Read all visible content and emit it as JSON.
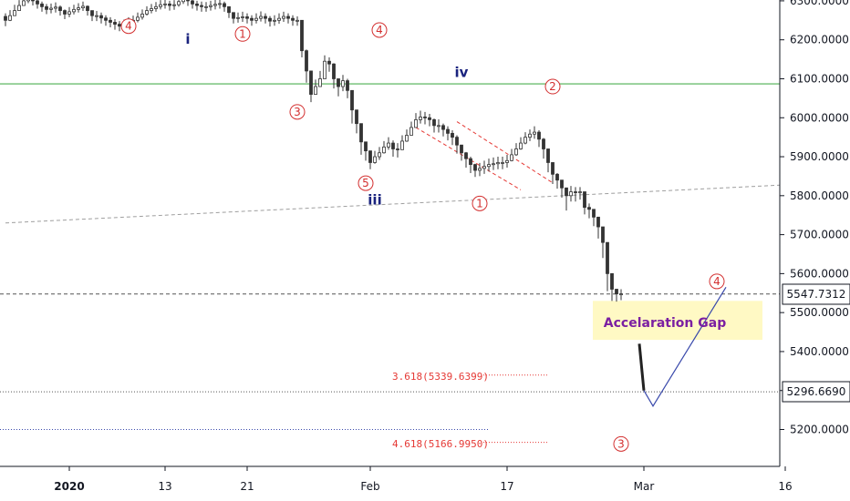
{
  "colors": {
    "up": "#26a69a",
    "down": "#222222",
    "candle": "#333333",
    "wave_red": "#d32f2f",
    "wave_blue": "#1a237e",
    "resistance": "#4caf50",
    "fib": "#e53935",
    "gap_fill": "#fff9c4",
    "gap_text": "#7b1fa2",
    "projection": "#3949ab"
  },
  "price_badges": {
    "current": "5547.7312",
    "low": "5296.6690"
  },
  "fib_labels": {
    "upper": "3.618(5339.6399)",
    "lower": "4.618(5166.9950)"
  },
  "gap_label": "Accelaration Gap",
  "wave_labels": [
    {
      "text": "4",
      "style": "circle",
      "price": 6235,
      "idx": 27
    },
    {
      "text": "i",
      "style": "blue",
      "price": 6190,
      "idx": 40
    },
    {
      "text": "1",
      "style": "circle",
      "price": 6215,
      "idx": 52
    },
    {
      "text": "2",
      "style": "circle",
      "price": 6345,
      "idx": 67
    },
    {
      "text": "4",
      "style": "circle",
      "price": 6225,
      "idx": 82
    },
    {
      "text": "3",
      "style": "circle",
      "price": 6015,
      "idx": 64
    },
    {
      "text": "5",
      "style": "circle",
      "price": 5832,
      "idx": 79
    },
    {
      "text": "iii",
      "style": "blue",
      "price": 5777,
      "idx": 81
    },
    {
      "text": "iv",
      "style": "blue",
      "price": 6105,
      "idx": 100
    },
    {
      "text": "2",
      "style": "circle",
      "price": 6080,
      "idx": 120
    },
    {
      "text": "1",
      "style": "circle",
      "price": 5780,
      "idx": 104
    },
    {
      "text": "3",
      "style": "circle",
      "price": 5163,
      "idx": 135
    },
    {
      "text": "4",
      "style": "circle",
      "price": 5580,
      "idx": 156
    }
  ],
  "chart_data": {
    "type": "candlestick",
    "title": "",
    "xlabel": "",
    "ylabel": "",
    "x_ticks": [
      {
        "label": "2020",
        "idx": 14
      },
      {
        "label": "13",
        "idx": 35
      },
      {
        "label": "21",
        "idx": 53
      },
      {
        "label": "Feb",
        "idx": 80
      },
      {
        "label": "17",
        "idx": 110
      },
      {
        "label": "Mar",
        "idx": 140
      },
      {
        "label": "16",
        "idx": 171
      }
    ],
    "y_ticks": [
      "5200.0000",
      "5300.0000",
      "5400.0000",
      "5500.0000",
      "5600.0000",
      "5700.0000",
      "5800.0000",
      "5900.0000",
      "6000.0000",
      "6100.0000",
      "6200.0000",
      "6300.0000"
    ],
    "ylim": [
      5140,
      6320
    ],
    "grid": false,
    "current_price": 5547.7312,
    "low_price": 5296.669,
    "resistance_level": 6087,
    "lower_dotted_level": 5200,
    "fib_levels": [
      {
        "ratio": 3.618,
        "price": 5339.6399
      },
      {
        "ratio": 4.618,
        "price": 5166.995
      }
    ],
    "gap_zone": {
      "from": 5430,
      "to": 5530
    },
    "series": [
      {
        "type": "candlestick",
        "closes": [
          6250,
          6262,
          6275,
          6288,
          6300,
          6305,
          6300,
          6292,
          6285,
          6278,
          6281,
          6284,
          6275,
          6266,
          6272,
          6278,
          6282,
          6286,
          6275,
          6262,
          6262,
          6256,
          6250,
          6245,
          6240,
          6235,
          6240,
          6245,
          6250,
          6258,
          6266,
          6275,
          6280,
          6285,
          6290,
          6292,
          6288,
          6290,
          6298,
          6305,
          6300,
          6292,
          6288,
          6285,
          6285,
          6288,
          6291,
          6293,
          6285,
          6270,
          6255,
          6257,
          6259,
          6255,
          6250,
          6255,
          6260,
          6255,
          6248,
          6250,
          6255,
          6260,
          6255,
          6250,
          6250,
          6172,
          6120,
          6060,
          6080,
          6100,
          6145,
          6138,
          6100,
          6080,
          6095,
          6070,
          6020,
          5985,
          5938,
          5915,
          5885,
          5900,
          5910,
          5925,
          5935,
          5920,
          5918,
          5940,
          5955,
          5975,
          5995,
          6002,
          6000,
          5995,
          5980,
          5980,
          5970,
          5960,
          5950,
          5930,
          5910,
          5895,
          5880,
          5865,
          5870,
          5875,
          5880,
          5882,
          5885,
          5885,
          5890,
          5905,
          5920,
          5935,
          5950,
          5958,
          5963,
          5945,
          5920,
          5885,
          5855,
          5840,
          5820,
          5800,
          5810,
          5808,
          5810,
          5770,
          5765,
          5745,
          5720,
          5680,
          5600,
          5560,
          5548,
          5548
        ],
        "highs": [
          6268,
          6276,
          6290,
          6302,
          6312,
          6318,
          6312,
          6305,
          6298,
          6292,
          6293,
          6296,
          6288,
          6278,
          6284,
          6290,
          6294,
          6298,
          6288,
          6275,
          6274,
          6270,
          6263,
          6258,
          6253,
          6248,
          6252,
          6258,
          6262,
          6270,
          6278,
          6286,
          6292,
          6297,
          6302,
          6305,
          6300,
          6302,
          6310,
          6318,
          6312,
          6305,
          6300,
          6298,
          6297,
          6300,
          6303,
          6305,
          6298,
          6283,
          6268,
          6270,
          6272,
          6268,
          6263,
          6268,
          6273,
          6268,
          6261,
          6263,
          6268,
          6272,
          6268,
          6263,
          6260,
          6228,
          6175,
          6110,
          6098,
          6120,
          6160,
          6155,
          6140,
          6098,
          6110,
          6100,
          6045,
          6005,
          5970,
          5935,
          5912,
          5915,
          5925,
          5940,
          5950,
          5942,
          5935,
          5955,
          5970,
          5990,
          6012,
          6018,
          6015,
          6010,
          5998,
          5996,
          5985,
          5978,
          5968,
          5955,
          5930,
          5912,
          5900,
          5882,
          5884,
          5890,
          5895,
          5898,
          5900,
          5900,
          5905,
          5920,
          5935,
          5950,
          5963,
          5970,
          5978,
          5968,
          5948,
          5918,
          5880,
          5858,
          5840,
          5820,
          5825,
          5822,
          5822,
          5808,
          5780,
          5760,
          5742,
          5720,
          5668,
          5590,
          5560,
          5560
        ],
        "lows": [
          6235,
          6248,
          6262,
          6275,
          6288,
          6294,
          6288,
          6280,
          6272,
          6266,
          6268,
          6270,
          6262,
          6253,
          6258,
          6265,
          6270,
          6274,
          6262,
          6248,
          6248,
          6242,
          6236,
          6232,
          6226,
          6222,
          6226,
          6232,
          6236,
          6245,
          6252,
          6262,
          6268,
          6272,
          6278,
          6280,
          6275,
          6277,
          6285,
          6292,
          6287,
          6280,
          6275,
          6272,
          6272,
          6275,
          6278,
          6280,
          6272,
          6256,
          6242,
          6244,
          6246,
          6242,
          6236,
          6242,
          6247,
          6242,
          6234,
          6236,
          6241,
          6246,
          6242,
          6236,
          6236,
          6155,
          6090,
          6040,
          6062,
          6085,
          6128,
          6118,
          6075,
          6055,
          6068,
          6050,
          5985,
          5960,
          5905,
          5890,
          5868,
          5882,
          5892,
          5908,
          5918,
          5900,
          5898,
          5920,
          5938,
          5958,
          5978,
          5985,
          5983,
          5978,
          5962,
          5962,
          5952,
          5942,
          5930,
          5908,
          5890,
          5872,
          5858,
          5848,
          5850,
          5856,
          5862,
          5866,
          5868,
          5868,
          5872,
          5888,
          5902,
          5918,
          5932,
          5940,
          5946,
          5925,
          5895,
          5860,
          5830,
          5818,
          5795,
          5762,
          5785,
          5785,
          5790,
          5752,
          5742,
          5722,
          5690,
          5640,
          5555,
          5530,
          5528,
          5532
        ]
      },
      {
        "type": "line",
        "name": "",
        "x": [
          139,
          140
        ],
        "values": [
          5420,
          5300
        ]
      },
      {
        "type": "line",
        "name": "",
        "x": [
          140,
          142,
          158
        ],
        "values": [
          5300,
          5260,
          5565
        ]
      }
    ],
    "trendlines": [
      {
        "style": "dashed-gray",
        "from": {
          "idx": 0,
          "price": 5730
        },
        "to": {
          "idx": 175,
          "price": 5830
        }
      },
      {
        "style": "dashed-red",
        "from": {
          "idx": 90,
          "price": 5975
        },
        "to": {
          "idx": 113,
          "price": 5815
        }
      },
      {
        "style": "dashed-red",
        "from": {
          "idx": 99,
          "price": 5990
        },
        "to": {
          "idx": 120,
          "price": 5833
        }
      }
    ]
  }
}
